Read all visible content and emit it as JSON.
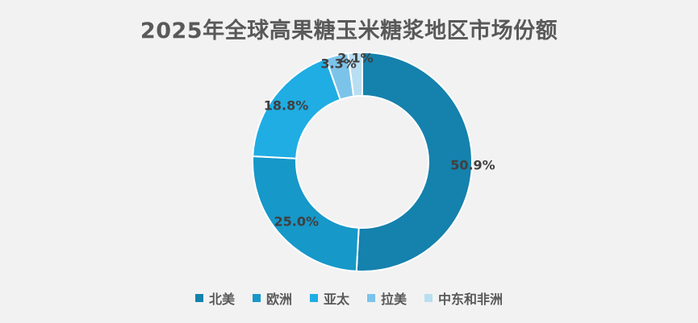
{
  "chart_data": {
    "type": "pie",
    "subtype": "donut",
    "title": "2025年全球高果糖玉米糖浆地区市场份额",
    "categories": [
      "北美",
      "欧洲",
      "亚太",
      "拉美",
      "中东和非洲"
    ],
    "values": [
      50.9,
      25.0,
      18.8,
      3.3,
      2.1
    ],
    "labels": [
      "50.9%",
      "25.0%",
      "18.8%",
      "3.3%",
      "2.1%"
    ],
    "colors": [
      "#1581ad",
      "#1698c9",
      "#1fade3",
      "#7cc3ea",
      "#b9def1"
    ],
    "legend_position": "bottom"
  }
}
